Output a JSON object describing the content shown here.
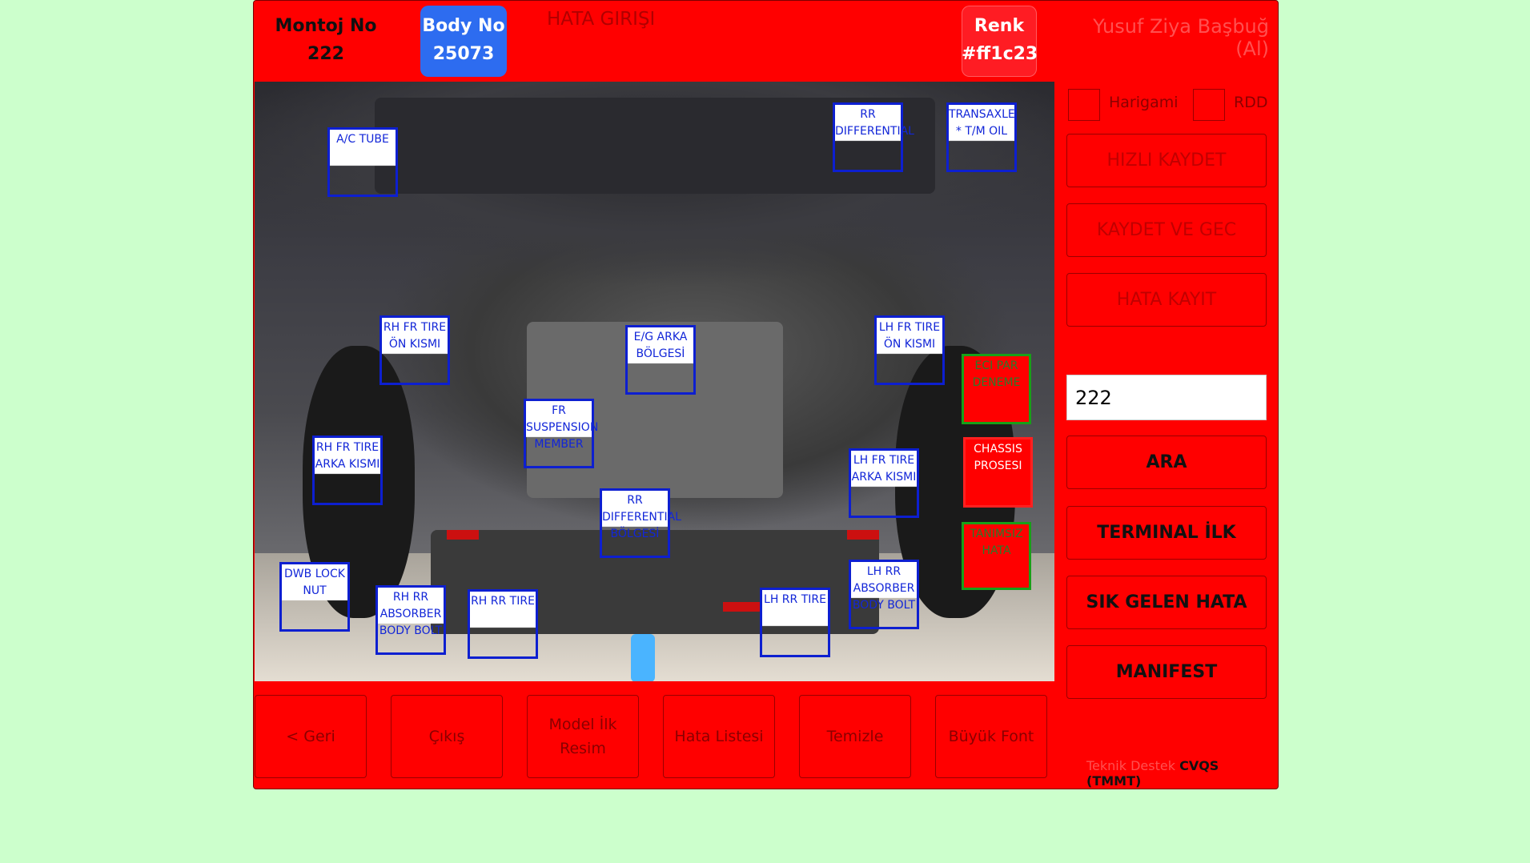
{
  "header": {
    "montoj_label": "Montoj No",
    "montoj_value": "222",
    "body_label": "Body No",
    "body_value": "25073",
    "title": "HATA GIRIŞI",
    "renk_label": "Renk",
    "renk_value": "#ff1c23",
    "user": "Yusuf Ziya Başbuğ (Al)"
  },
  "tags": [
    {
      "id": "ac-tube",
      "text": "A/C TUBE"
    },
    {
      "id": "rr-diff",
      "text": "RR DIFFERENTIAL"
    },
    {
      "id": "transaxle",
      "text": "TRANSAXLE * T/M OIL"
    },
    {
      "id": "rh-fr-on",
      "text": "RH FR TIRE ÖN KISMI"
    },
    {
      "id": "eg-arka",
      "text": "E/G ARKA BÖLGESİ"
    },
    {
      "id": "lh-fr-on",
      "text": "LH FR TIRE ÖN KISMI"
    },
    {
      "id": "fr-susp",
      "text": "FR SUSPENSION MEMBER"
    },
    {
      "id": "rh-fr-arka",
      "text": "RH FR TIRE ARKA KISMI"
    },
    {
      "id": "lh-fr-arka",
      "text": "LH FR TIRE ARKA KISMI"
    },
    {
      "id": "rr-diff-bolge",
      "text": "RR DIFFERENTIAL BÖLGESİ"
    },
    {
      "id": "dwb-lock",
      "text": "DWB LOCK NUT"
    },
    {
      "id": "rh-rr-abs",
      "text": "RH RR ABSORBER BODY BOLT"
    },
    {
      "id": "rh-rr-tire",
      "text": "RH RR TIRE"
    },
    {
      "id": "lh-rr-tire",
      "text": "LH RR TIRE"
    },
    {
      "id": "lh-rr-abs",
      "text": "LH RR ABSORBER BODY BOLT"
    }
  ],
  "side_tags": {
    "eci": "ECI PAR DENEME",
    "chassis": "CHASSIS PROSESI",
    "tanimsiz": "TANIMSIZ HATA"
  },
  "right_panel": {
    "check1": "Harigami",
    "check2": "RDD",
    "hizli": "HIZLI KAYDET",
    "kaydet_gec": "KAYDET VE GEC",
    "hata_kayit": "HATA KAYIT",
    "search_value": "222",
    "ara": "ARA",
    "terminal": "TERMINAL İLK RESIM",
    "sik": "SIK GELEN HATA",
    "manifest": "MANIFEST"
  },
  "bottom": {
    "geri": "< Geri",
    "cikis": "Çıkış",
    "model": "Model İlk Resim",
    "hata_listesi": "Hata Listesi",
    "temizle": "Temizle",
    "buyuk_font": "Büyük Font"
  },
  "support": {
    "prefix": "Teknik Destek",
    "name": "CVQS (TMMT)"
  },
  "colors": {
    "app_bg": "#ff0000",
    "page_bg": "#ccffcc",
    "body_badge": "#2d6cf0",
    "renk_badge": "#ff1c23",
    "tag_border": "#0d1fd0"
  }
}
